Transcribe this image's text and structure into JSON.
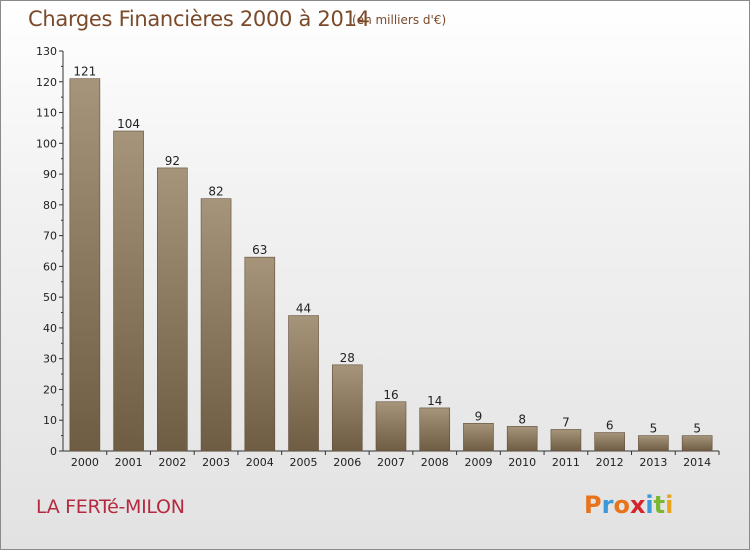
{
  "header": {
    "title": "Charges Financières 2000 à 2014",
    "unit": "(en milliers d'€)"
  },
  "footer": {
    "place": "LA FERTé-MILON",
    "logo_letters": [
      "P",
      "r",
      "o",
      "x",
      "i",
      "t",
      "i"
    ],
    "logo_colors": [
      "#e8731a",
      "#3a9ad9",
      "#e8731a",
      "#d4252b",
      "#3a9ad9",
      "#7cb82f",
      "#e8a51a"
    ]
  },
  "colors": {
    "bar_top": "#a6957a",
    "bar_bottom": "#6e5c43",
    "bar_edge": "#5f4e38",
    "title": "#7a4a2a",
    "place": "#b52a40"
  },
  "chart_data": {
    "type": "bar",
    "categories": [
      "2000",
      "2001",
      "2002",
      "2003",
      "2004",
      "2005",
      "2006",
      "2007",
      "2008",
      "2009",
      "2010",
      "2011",
      "2012",
      "2013",
      "2014"
    ],
    "values": [
      121,
      104,
      92,
      82,
      63,
      44,
      28,
      16,
      14,
      9,
      8,
      7,
      6,
      5,
      5
    ],
    "title": "Charges Financières 2000 à 2014",
    "subtitle": "(en milliers d'€)",
    "xlabel": "",
    "ylabel": "",
    "ylim": [
      0,
      130
    ],
    "yticks": [
      0,
      10,
      20,
      30,
      40,
      50,
      60,
      70,
      80,
      90,
      100,
      110,
      120,
      130
    ],
    "grid": false,
    "data_labels": true
  }
}
